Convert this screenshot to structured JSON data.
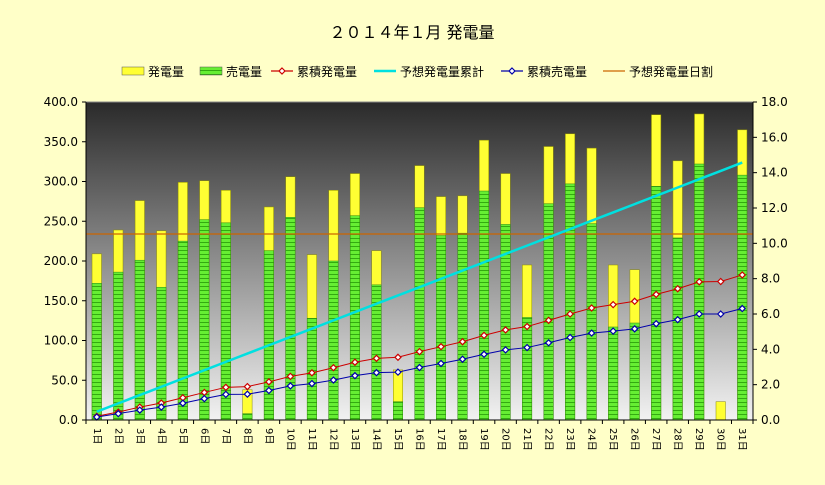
{
  "chart_data": {
    "type": "bar",
    "title": "２０１４年１月 発電量",
    "categories": [
      "1日",
      "2日",
      "3日",
      "4日",
      "5日",
      "6日",
      "7日",
      "8日",
      "9日",
      "10日",
      "11日",
      "12日",
      "13日",
      "14日",
      "15日",
      "16日",
      "17日",
      "18日",
      "19日",
      "20日",
      "21日",
      "22日",
      "23日",
      "24日",
      "25日",
      "26日",
      "27日",
      "28日",
      "29日",
      "30日",
      "31日"
    ],
    "ylim": [
      0,
      400
    ],
    "y2lim": [
      0,
      18
    ],
    "yticks": [
      "0.0",
      "50.0",
      "100.0",
      "150.0",
      "200.0",
      "250.0",
      "300.0",
      "350.0",
      "400.0"
    ],
    "y2ticks": [
      "0.0",
      "2.0",
      "4.0",
      "6.0",
      "8.0",
      "10.0",
      "12.0",
      "14.0",
      "16.0",
      "18.0"
    ],
    "grid": false,
    "legend_placement": "top",
    "series": [
      {
        "name": "発電量",
        "kind": "bar",
        "axis": "left",
        "color": "#ffff33",
        "values": [
          209,
          239,
          276,
          238,
          299,
          301,
          289,
          38,
          268,
          306,
          208,
          289,
          310,
          213,
          63,
          320,
          281,
          282,
          352,
          310,
          195,
          344,
          360,
          342,
          195,
          189,
          384,
          326,
          385,
          23,
          365
        ]
      },
      {
        "name": "売電量",
        "kind": "bar",
        "axis": "left",
        "color": "#66ee33",
        "values": [
          172,
          186,
          201,
          167,
          225,
          252,
          248,
          8,
          213,
          255,
          128,
          200,
          257,
          170,
          23,
          267,
          232,
          235,
          288,
          246,
          129,
          272,
          297,
          247,
          117,
          122,
          294,
          229,
          322,
          0,
          308
        ]
      },
      {
        "name": "累積発電量",
        "kind": "line",
        "axis": "right",
        "color": "#cc0000",
        "values": [
          0.21,
          0.45,
          0.73,
          0.96,
          1.26,
          1.56,
          1.85,
          1.89,
          2.16,
          2.47,
          2.67,
          2.96,
          3.27,
          3.49,
          3.55,
          3.87,
          4.15,
          4.43,
          4.79,
          5.1,
          5.29,
          5.64,
          6.0,
          6.34,
          6.53,
          6.72,
          7.11,
          7.43,
          7.82,
          7.84,
          8.21
        ]
      },
      {
        "name": "予想発電量累計",
        "kind": "line",
        "axis": "right",
        "color": "#00e0e0",
        "values": [
          0.47,
          0.94,
          1.41,
          1.88,
          2.35,
          2.82,
          3.29,
          3.76,
          4.23,
          4.7,
          5.17,
          5.64,
          6.11,
          6.58,
          7.05,
          7.52,
          7.99,
          8.46,
          8.93,
          9.4,
          9.87,
          10.34,
          10.81,
          11.28,
          11.75,
          12.22,
          12.69,
          13.16,
          13.63,
          14.1,
          14.57
        ]
      },
      {
        "name": "累積売電量",
        "kind": "line",
        "axis": "right",
        "color": "#0000aa",
        "values": [
          0.17,
          0.36,
          0.56,
          0.73,
          0.95,
          1.21,
          1.45,
          1.46,
          1.67,
          1.93,
          2.06,
          2.26,
          2.51,
          2.68,
          2.71,
          2.97,
          3.2,
          3.44,
          3.72,
          3.97,
          4.1,
          4.37,
          4.67,
          4.92,
          5.03,
          5.16,
          5.45,
          5.68,
          6.0,
          6.0,
          6.31
        ]
      },
      {
        "name": "予想発電量日割",
        "kind": "line",
        "axis": "left",
        "color": "#cc6600",
        "values": [
          234,
          234,
          234,
          234,
          234,
          234,
          234,
          234,
          234,
          234,
          234,
          234,
          234,
          234,
          234,
          234,
          234,
          234,
          234,
          234,
          234,
          234,
          234,
          234,
          234,
          234,
          234,
          234,
          234,
          234,
          234
        ]
      }
    ]
  }
}
